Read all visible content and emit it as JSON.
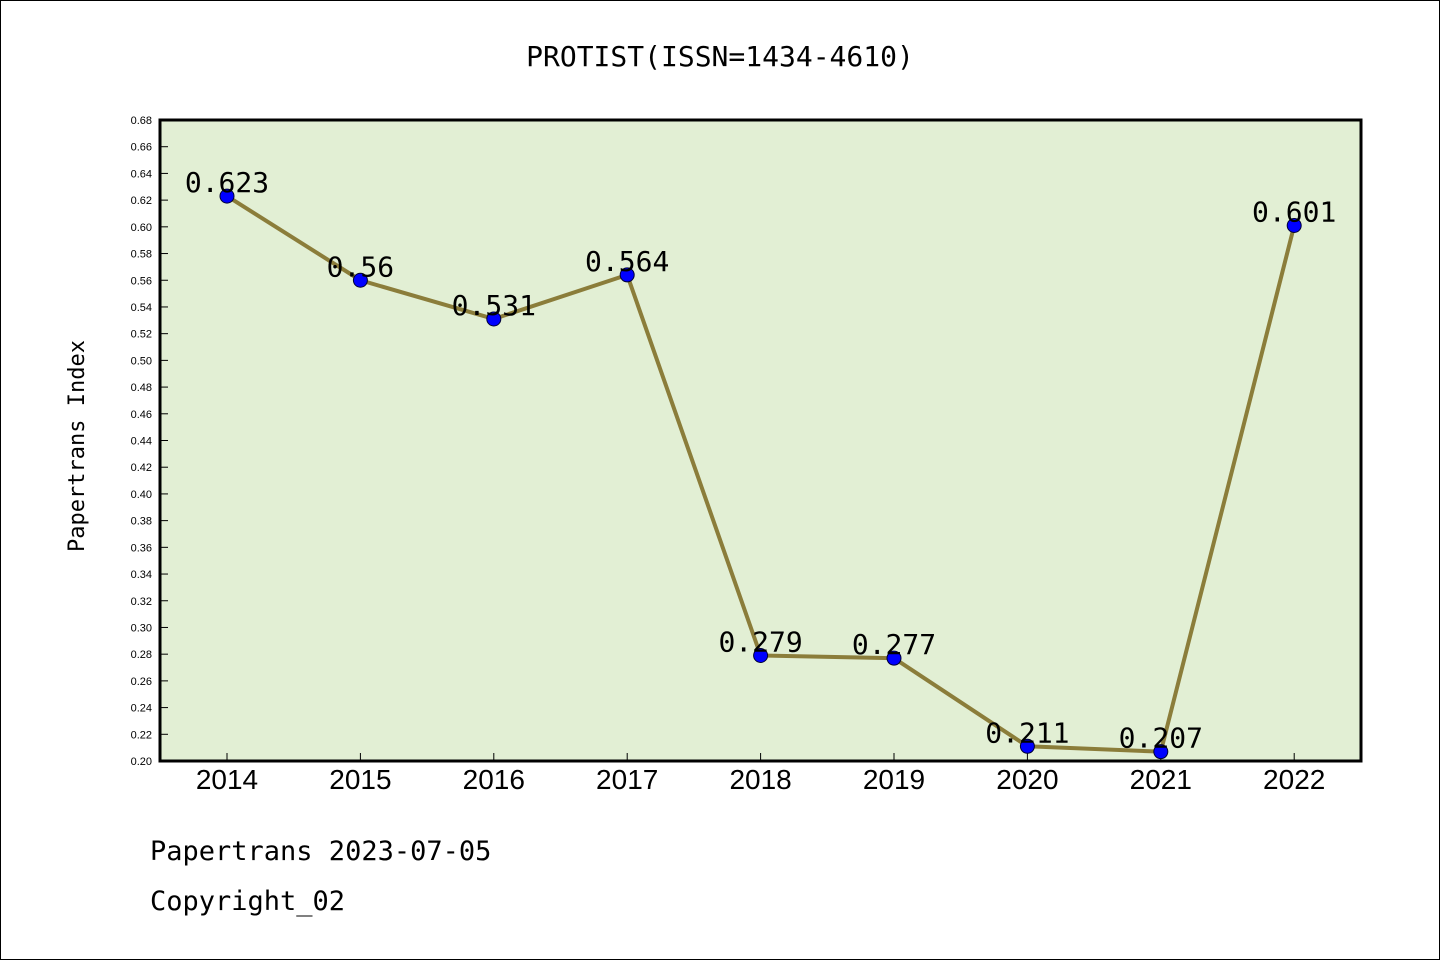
{
  "chart_data": {
    "type": "line",
    "title": "PROTIST(ISSN=1434-4610)",
    "xlabel": "",
    "ylabel": "Papertrans Index",
    "categories": [
      "2014",
      "2015",
      "2016",
      "2017",
      "2018",
      "2019",
      "2020",
      "2021",
      "2022"
    ],
    "series": [
      {
        "values": [
          0.623,
          0.56,
          0.531,
          0.564,
          0.279,
          0.277,
          0.211,
          0.207,
          0.601
        ],
        "labels": [
          "0.623",
          "0.56",
          "0.531",
          "0.564",
          "0.279",
          "0.277",
          "0.211",
          "0.207",
          "0.601"
        ]
      }
    ],
    "ylim": [
      0.2,
      0.68
    ],
    "yticks": [
      "0.20",
      "0.22",
      "0.24",
      "0.26",
      "0.28",
      "0.30",
      "0.32",
      "0.34",
      "0.36",
      "0.38",
      "0.40",
      "0.42",
      "0.44",
      "0.46",
      "0.48",
      "0.50",
      "0.52",
      "0.54",
      "0.56",
      "0.58",
      "0.60",
      "0.62",
      "0.64",
      "0.66",
      "0.68"
    ],
    "grid": false,
    "colors": {
      "plot_background": "#e2efd4",
      "line": "#8b7d3a",
      "marker": "#0000ff"
    }
  },
  "footer": {
    "line1": "Papertrans 2023-07-05",
    "line2": "Copyright_02"
  }
}
